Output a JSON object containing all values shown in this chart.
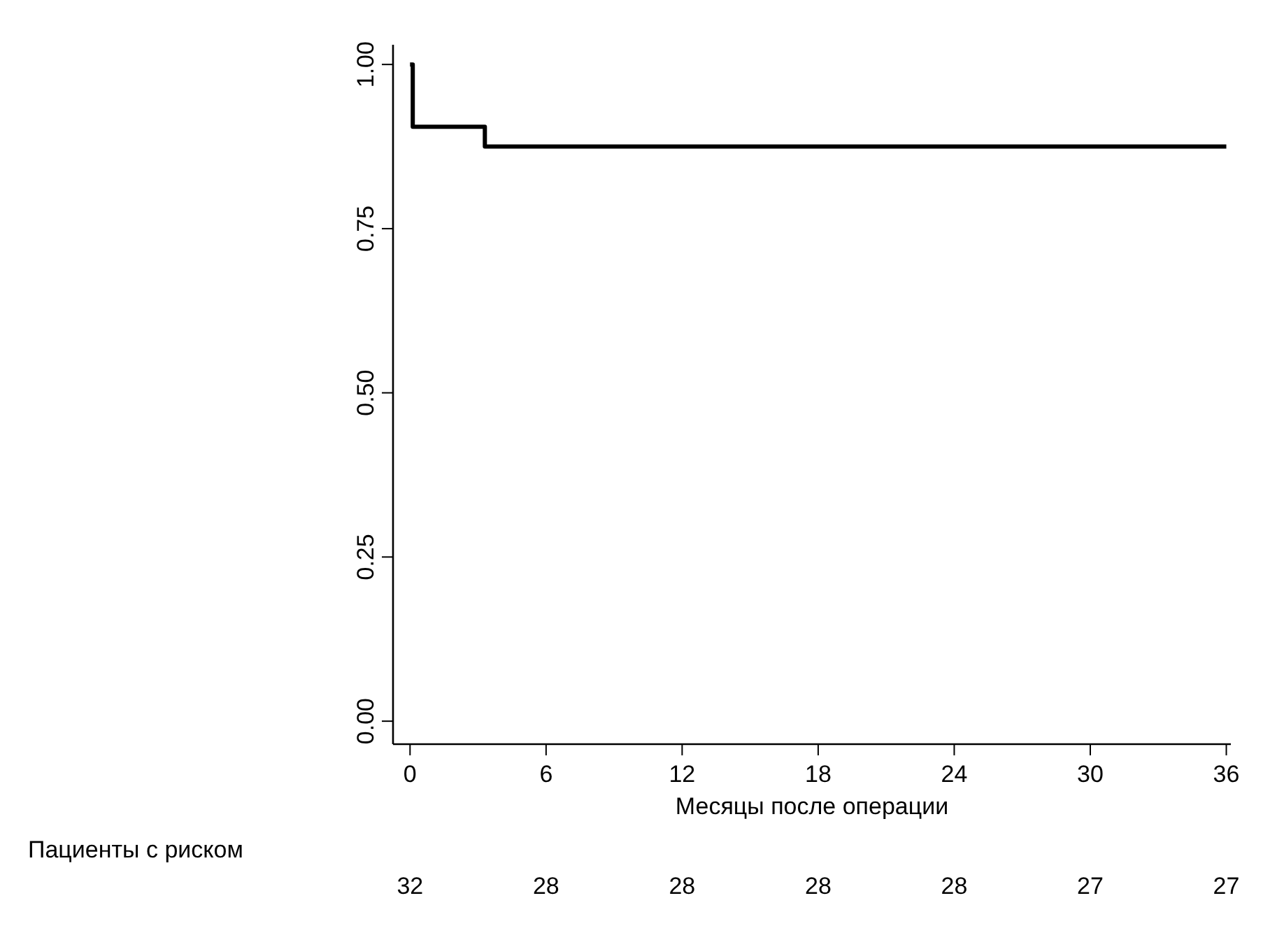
{
  "chart_data": {
    "type": "step",
    "xlabel": "Месяцы после операции",
    "x": [
      0,
      0.12,
      3.3,
      36
    ],
    "series": [
      {
        "color": "#000000",
        "values": [
          1,
          0.905,
          0.875,
          0.875
        ]
      }
    ],
    "xlim": [
      -0.75,
      36.2
    ],
    "xticks": [
      0,
      6,
      12,
      18,
      24,
      30,
      36
    ],
    "ylim": [
      -0.035,
      1.03
    ],
    "yticks": [
      {
        "value": 0,
        "label": "0.00"
      },
      {
        "value": 0.25,
        "label": "0.25"
      },
      {
        "value": 0.5,
        "label": "0.50"
      },
      {
        "value": 0.75,
        "label": "0.75"
      },
      {
        "value": 1,
        "label": "1.00"
      }
    ],
    "annotations": [
      "Пациенты с риском",
      "32",
      "28",
      "28",
      "28",
      "28",
      "27",
      "27"
    ],
    "grid": false,
    "line_style": "solid"
  }
}
